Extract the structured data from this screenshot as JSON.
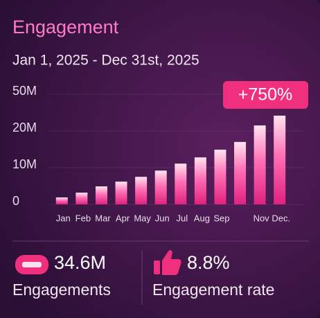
{
  "title": "Engagement",
  "date_range": "Jan 1, 2025 - Dec 31st, 2025",
  "chart_data": {
    "type": "bar",
    "categories": [
      "Jan",
      "Feb",
      "Mar",
      "Apr",
      "May",
      "Jun",
      "Jul",
      "Aug",
      "Sep",
      null,
      "Nov",
      "Dec."
    ],
    "values": [
      1.9,
      3.2,
      4.9,
      6.2,
      7.5,
      9.2,
      11.1,
      12.8,
      14.9,
      17.0,
      24.5,
      32.5
    ],
    "ylim": [
      0,
      50
    ],
    "yticks": [
      0,
      {
        "value": 10,
        "label": "10M"
      },
      {
        "value": 20,
        "label": "20M"
      },
      {
        "value": 50,
        "label": "50M"
      }
    ],
    "grid": true,
    "annotation": "+750%"
  },
  "kpis": [
    {
      "value": "34.6M",
      "label": "Engagements"
    },
    {
      "value": "8.8%",
      "label": "Engagement rate"
    }
  ]
}
